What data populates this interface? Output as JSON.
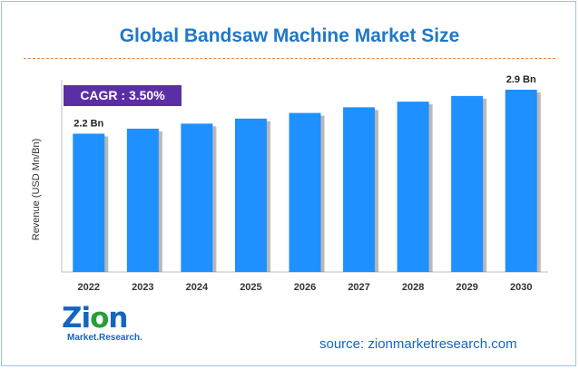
{
  "title": "Global Bandsaw Machine Market Size",
  "cagr_badge": "CAGR : 3.50%",
  "source": "source: zionmarketresearch.com",
  "logo": {
    "word_main": "Zi",
    "word_accent": "o",
    "word_end": "n",
    "subtitle": "Market.Research."
  },
  "colors": {
    "bar": "#1e90ff",
    "bar_shadow": "#7f7f7f",
    "title": "#1f78c8",
    "badge": "#5b2ea6",
    "divider": "#e08a50"
  },
  "chart_data": {
    "type": "bar",
    "title": "Global Bandsaw Machine Market Size",
    "xlabel": "",
    "ylabel": "Revenue (USD Mn/Bn)",
    "categories": [
      "2022",
      "2023",
      "2024",
      "2025",
      "2026",
      "2027",
      "2028",
      "2029",
      "2030"
    ],
    "values": [
      2.2,
      2.28,
      2.36,
      2.44,
      2.53,
      2.62,
      2.71,
      2.8,
      2.9
    ],
    "data_labels": [
      {
        "index": 0,
        "text": "2.2 Bn"
      },
      {
        "index": 8,
        "text": "2.9 Bn"
      }
    ],
    "ylim": [
      0,
      3.0
    ],
    "grid": false,
    "legend": "none"
  }
}
